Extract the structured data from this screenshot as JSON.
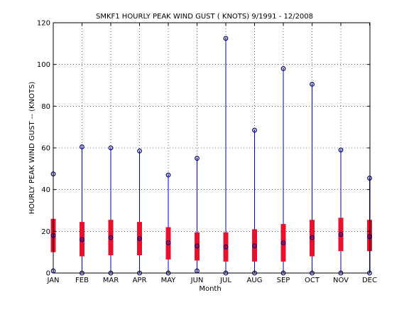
{
  "chart_data": {
    "type": "boxplot",
    "title": "SMKF1  HOURLY PEAK WIND GUST ( KNOTS) 9/1991 - 12/2008",
    "xlabel": "Month",
    "ylabel": "HOURLY PEAK WIND GUST --  (KNOTS)",
    "ylim": [
      0,
      120
    ],
    "yticks": [
      0,
      20,
      40,
      60,
      80,
      100,
      120
    ],
    "grid": true,
    "categories": [
      "JAN",
      "FEB",
      "MAR",
      "APR",
      "MAY",
      "JUN",
      "JUL",
      "AUG",
      "SEP",
      "OCT",
      "NOV",
      "DEC"
    ],
    "min": [
      1,
      0,
      0,
      0,
      0,
      1,
      0,
      0,
      0,
      0,
      0,
      0
    ],
    "q1": [
      10,
      8,
      8.5,
      8.5,
      6.5,
      6,
      5.5,
      5.5,
      5.5,
      8,
      10.5,
      10.5
    ],
    "median": [
      18,
      16,
      17,
      16.5,
      14.5,
      13,
      12.5,
      13,
      14.5,
      17,
      18.5,
      17.5
    ],
    "q3": [
      26,
      24.5,
      25.5,
      24.5,
      22,
      19.5,
      19.5,
      21,
      23.5,
      25.5,
      26.5,
      25.5
    ],
    "max": [
      47.5,
      60.5,
      60,
      58.5,
      47,
      55,
      112.5,
      68.5,
      98,
      90.5,
      59,
      45.5
    ],
    "colors": {
      "whisker": "#0000cc",
      "box": "#e8112d",
      "marker": "#000080",
      "axis": "#000000",
      "grid": "#000000"
    }
  }
}
